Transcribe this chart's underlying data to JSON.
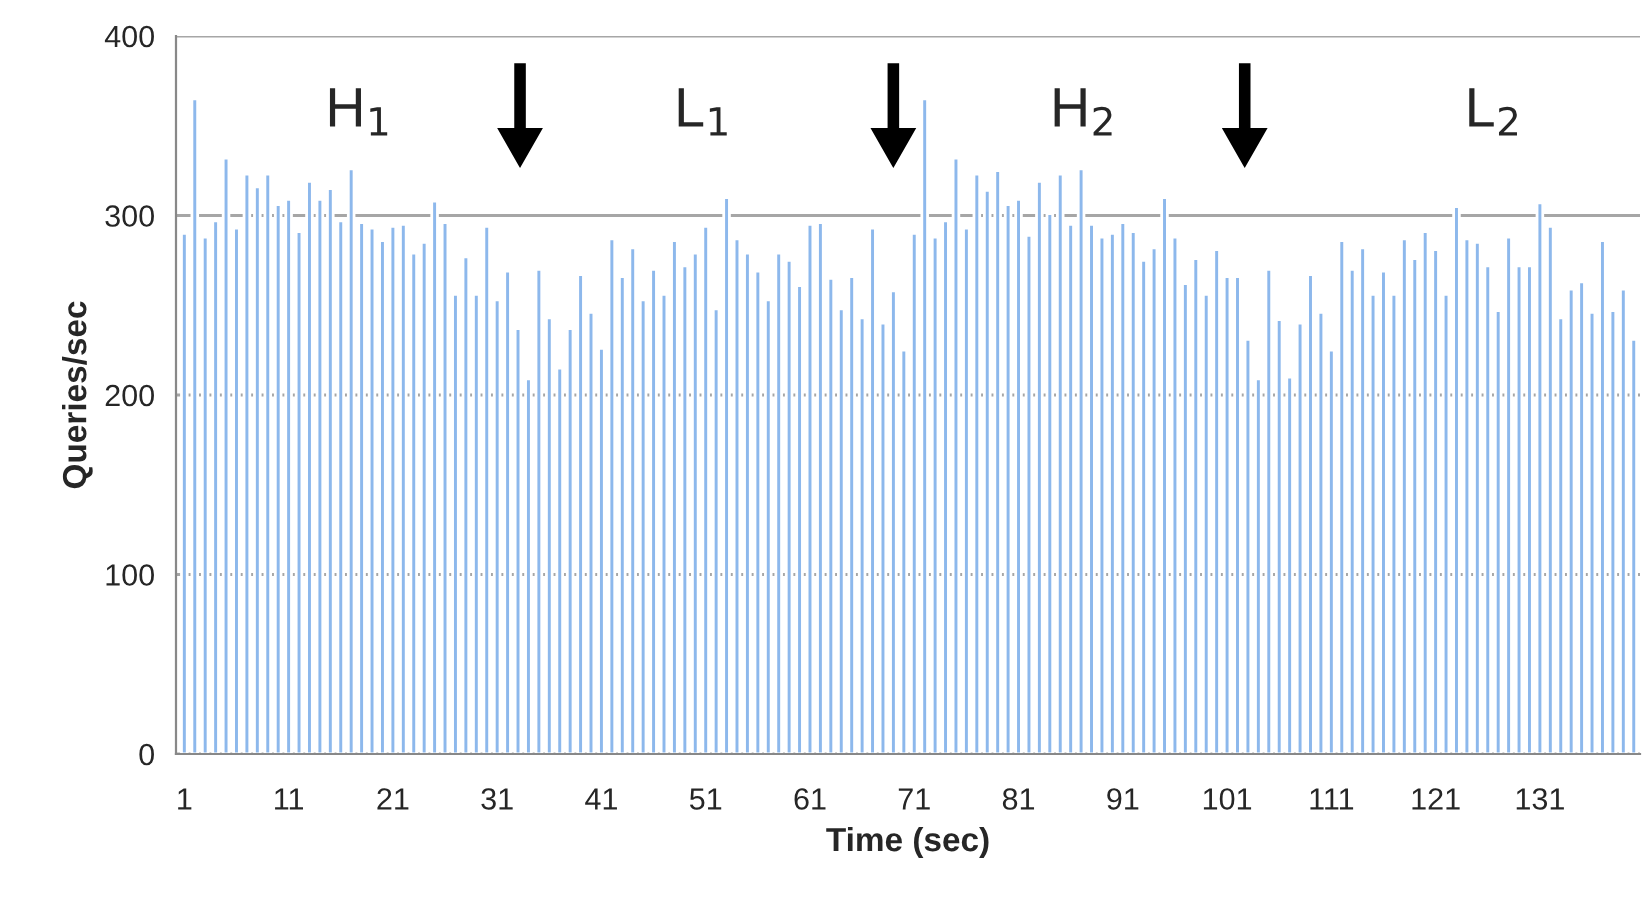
{
  "chart_data": {
    "type": "bar",
    "xlabel": "Time (sec)",
    "ylabel": "Queries/sec",
    "categories": [
      "1",
      null,
      null,
      null,
      null,
      null,
      null,
      null,
      null,
      null,
      "11",
      null,
      null,
      null,
      null,
      null,
      null,
      null,
      null,
      null,
      "21",
      null,
      null,
      null,
      null,
      null,
      null,
      null,
      null,
      null,
      "31",
      null,
      null,
      null,
      null,
      null,
      null,
      null,
      null,
      null,
      "41",
      null,
      null,
      null,
      null,
      null,
      null,
      null,
      null,
      null,
      "51",
      null,
      null,
      null,
      null,
      null,
      null,
      null,
      null,
      null,
      "61",
      null,
      null,
      null,
      null,
      null,
      null,
      null,
      null,
      null,
      "71",
      null,
      null,
      null,
      null,
      null,
      null,
      null,
      null,
      null,
      "81",
      null,
      null,
      null,
      null,
      null,
      null,
      null,
      null,
      null,
      "91",
      null,
      null,
      null,
      null,
      null,
      null,
      null,
      null,
      null,
      "101",
      null,
      null,
      null,
      null,
      null,
      null,
      null,
      null,
      null,
      "111",
      null,
      null,
      null,
      null,
      null,
      null,
      null,
      null,
      null,
      "121",
      null,
      null,
      null,
      null,
      null,
      null,
      null,
      null,
      null,
      "131",
      null,
      null,
      null,
      null,
      null,
      null,
      null,
      null,
      null
    ],
    "values": [
      290,
      365,
      288,
      297,
      332,
      293,
      323,
      316,
      323,
      306,
      309,
      291,
      319,
      309,
      315,
      297,
      326,
      296,
      293,
      286,
      294,
      295,
      279,
      285,
      308,
      296,
      256,
      277,
      256,
      294,
      253,
      269,
      237,
      209,
      270,
      243,
      215,
      237,
      267,
      246,
      226,
      287,
      266,
      282,
      253,
      270,
      256,
      286,
      272,
      279,
      294,
      248,
      310,
      287,
      279,
      269,
      253,
      279,
      275,
      261,
      295,
      296,
      265,
      248,
      266,
      243,
      293,
      240,
      258,
      225,
      290,
      365,
      288,
      297,
      332,
      293,
      323,
      314,
      325,
      306,
      309,
      289,
      319,
      301,
      323,
      295,
      326,
      295,
      288,
      290,
      296,
      291,
      275,
      282,
      310,
      288,
      262,
      276,
      256,
      281,
      266,
      266,
      231,
      209,
      270,
      242,
      210,
      240,
      267,
      246,
      225,
      286,
      270,
      282,
      256,
      269,
      256,
      287,
      276,
      291,
      281,
      256,
      305,
      287,
      285,
      272,
      247,
      288,
      272,
      272,
      307,
      294,
      243,
      259,
      263,
      246,
      286,
      247,
      259,
      231
    ],
    "color": "#8db8ec",
    "ylim": [
      0,
      400
    ],
    "yticks": [
      0,
      100,
      200,
      300,
      400
    ],
    "grid": "y",
    "annotations": [
      "H$_{1}$",
      "L$_{1}$",
      "H$_{2}$",
      "L$_{2}$"
    ]
  }
}
